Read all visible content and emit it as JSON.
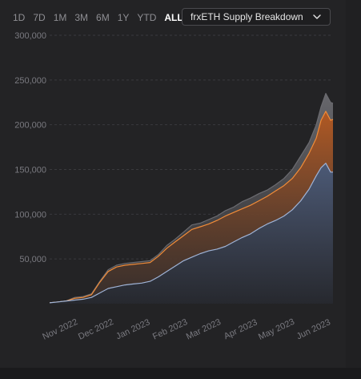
{
  "range_buttons": [
    {
      "label": "1D",
      "active": false
    },
    {
      "label": "7D",
      "active": false
    },
    {
      "label": "1M",
      "active": false
    },
    {
      "label": "3M",
      "active": false
    },
    {
      "label": "6M",
      "active": false
    },
    {
      "label": "1Y",
      "active": false
    },
    {
      "label": "YTD",
      "active": false
    },
    {
      "label": "ALL",
      "active": true
    }
  ],
  "dropdown": {
    "selected": "frxETH Supply Breakdown",
    "icon": "chevron-down-icon"
  },
  "colors": {
    "total": "#6b6b70",
    "middle": "#f28c38",
    "lower": "#9fb3d6",
    "grid": "#3a3a3e",
    "tick": "#7a7a80"
  },
  "chart_data": {
    "type": "area",
    "title": "",
    "xlabel": "",
    "ylabel": "",
    "ylim": [
      0,
      300000
    ],
    "y_ticks": [
      "300,000",
      "250,000",
      "200,000",
      "150,000",
      "100,000",
      "50,000"
    ],
    "y_tick_values": [
      300000,
      250000,
      200000,
      150000,
      100000,
      50000
    ],
    "x_ticks": [
      "Nov 2022",
      "Dec 2022",
      "Jan 2023",
      "Feb 2023",
      "Mar 2023",
      "Apr 2023",
      "May 2023",
      "Jun 2023"
    ],
    "x_tick_dates": [
      "2022-11-01",
      "2022-12-01",
      "2023-01-01",
      "2023-02-01",
      "2023-03-01",
      "2023-04-01",
      "2023-05-01",
      "2023-06-01"
    ],
    "x_range": [
      "2022-10-21",
      "2023-06-15"
    ],
    "grid": true,
    "legend": "none",
    "x": [
      "2022-10-21",
      "2022-10-28",
      "2022-11-04",
      "2022-11-11",
      "2022-11-18",
      "2022-11-25",
      "2022-12-02",
      "2022-12-09",
      "2022-12-16",
      "2022-12-23",
      "2022-12-30",
      "2023-01-06",
      "2023-01-13",
      "2023-01-20",
      "2023-01-27",
      "2023-02-03",
      "2023-02-10",
      "2023-02-17",
      "2023-02-24",
      "2023-03-03",
      "2023-03-10",
      "2023-03-17",
      "2023-03-24",
      "2023-03-31",
      "2023-04-07",
      "2023-04-14",
      "2023-04-21",
      "2023-04-28",
      "2023-05-05",
      "2023-05-12",
      "2023-05-19",
      "2023-05-26",
      "2023-06-01",
      "2023-06-05",
      "2023-06-09",
      "2023-06-13",
      "2023-06-15"
    ],
    "series": [
      {
        "values": [
          1000,
          2000,
          3000,
          7000,
          8000,
          11000,
          25000,
          38000,
          43000,
          45000,
          46000,
          47000,
          48000,
          55000,
          65000,
          72000,
          80000,
          88000,
          90000,
          94000,
          98000,
          104000,
          108000,
          114000,
          118000,
          123000,
          127000,
          133000,
          140000,
          150000,
          165000,
          180000,
          200000,
          220000,
          235000,
          225000,
          224000
        ]
      },
      {
        "values": [
          1000,
          2000,
          3000,
          6000,
          7000,
          10000,
          24000,
          36000,
          41000,
          43000,
          44000,
          45000,
          46000,
          53000,
          62000,
          69000,
          76000,
          83000,
          86000,
          89000,
          93000,
          98000,
          102000,
          106000,
          110000,
          115000,
          120000,
          126000,
          132000,
          140000,
          152000,
          168000,
          185000,
          205000,
          215000,
          205000,
          206000
        ]
      },
      {
        "values": [
          1000,
          2000,
          3000,
          4000,
          5000,
          7000,
          12000,
          17000,
          19000,
          21000,
          22000,
          23000,
          25000,
          30000,
          36000,
          42000,
          48000,
          52000,
          56000,
          59000,
          61000,
          64000,
          69000,
          74000,
          78000,
          84000,
          89000,
          93000,
          98000,
          105000,
          115000,
          128000,
          143000,
          152000,
          157000,
          147000,
          147000
        ]
      }
    ]
  }
}
